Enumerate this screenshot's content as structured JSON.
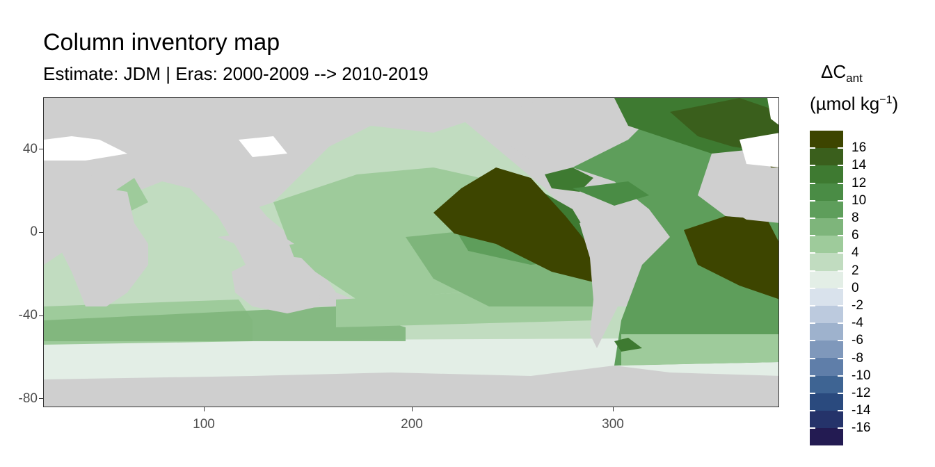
{
  "title": "Column inventory map",
  "subtitle": "Estimate: JDM  | Eras: 2000-2009 --> 2010-2019",
  "map": {
    "x_ticks": [
      "100",
      "200",
      "300"
    ],
    "y_ticks": [
      "40",
      "0",
      "-40",
      "-80"
    ],
    "land_color": "#cfcfcf"
  },
  "legend": {
    "title_main": "ΔC",
    "title_sub": "ant",
    "unit_prefix": "(µmol kg",
    "unit_sup": "−1",
    "unit_suffix": ")",
    "colors": [
      "#3d4500",
      "#3a5f1c",
      "#3e7a31",
      "#4a8c45",
      "#5e9e5b",
      "#7eb57b",
      "#9ecb9b",
      "#c1dcc0",
      "#e3eee6",
      "#d9e2ec",
      "#bccade",
      "#9eb2cd",
      "#7f98bb",
      "#5f7ea9",
      "#3e6493",
      "#2a4a7e",
      "#25336a",
      "#231b52"
    ],
    "labels": [
      "16",
      "14",
      "12",
      "10",
      "8",
      "6",
      "4",
      "2",
      "0",
      "-2",
      "-4",
      "-6",
      "-8",
      "-10",
      "-12",
      "-14",
      "-16"
    ]
  }
}
